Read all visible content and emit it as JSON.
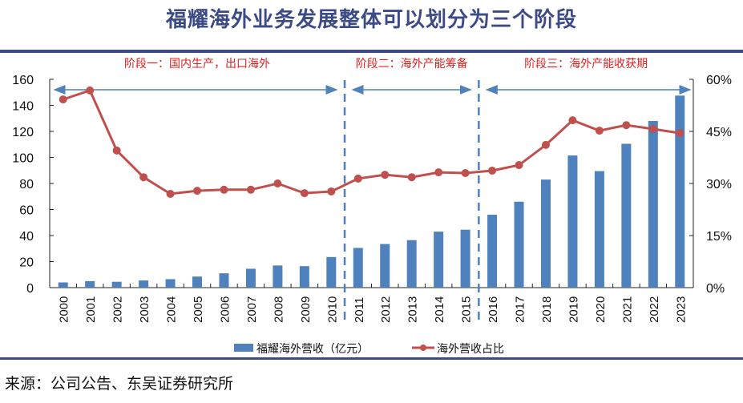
{
  "header": {
    "title": "福耀海外业务发展整体可以划分为三个阶段"
  },
  "footer": {
    "source": "来源：公司公告、东吴证券研究所"
  },
  "chart_data": {
    "type": "bar+line",
    "title": "福耀海外业务发展整体可以划分为三个阶段",
    "categories": [
      "2000",
      "2001",
      "2002",
      "2003",
      "2004",
      "2005",
      "2006",
      "2007",
      "2008",
      "2009",
      "2010",
      "2011",
      "2012",
      "2013",
      "2014",
      "2015",
      "2016",
      "2017",
      "2018",
      "2019",
      "2020",
      "2021",
      "2022",
      "2023"
    ],
    "series": [
      {
        "name": "福耀海外营收（亿元）",
        "type": "bar",
        "axis": "left",
        "color": "#4f81bd",
        "values": [
          4,
          5,
          4.5,
          5.5,
          6.5,
          8.5,
          11,
          14.5,
          17,
          16.5,
          23.5,
          30.5,
          33.5,
          36.5,
          43,
          44.5,
          56,
          66,
          83,
          101.5,
          89.5,
          110.5,
          128,
          147.5
        ]
      },
      {
        "name": "海外营收占比",
        "type": "line",
        "axis": "right",
        "color": "#c0504d",
        "values": [
          54.2,
          56.8,
          39.5,
          31.8,
          27.0,
          27.9,
          28.2,
          28.2,
          30.0,
          27.2,
          27.7,
          31.4,
          32.5,
          31.8,
          33.2,
          33.0,
          33.7,
          35.3,
          41.1,
          48.2,
          45.2,
          46.8,
          45.7,
          44.5
        ]
      }
    ],
    "y_left": {
      "ylim": [
        0,
        160
      ],
      "ticks": [
        0,
        20,
        40,
        60,
        80,
        100,
        120,
        140,
        160
      ]
    },
    "y_right": {
      "ylim": [
        0,
        60
      ],
      "ticks": [
        "0%",
        "15%",
        "30%",
        "45%",
        "60%"
      ],
      "tick_values": [
        0,
        15,
        30,
        45,
        60
      ]
    },
    "stages": [
      {
        "label": "阶段一：国内生产，出口海外",
        "from": "2000",
        "to": "2010"
      },
      {
        "label": "阶段二：海外产能筹备",
        "from": "2011",
        "to": "2015"
      },
      {
        "label": "阶段三：海外产能收获期",
        "from": "2016",
        "to": "2023"
      }
    ],
    "stage_divider_color": "#4f81bd",
    "legend": {
      "position": "bottom",
      "items": [
        "福耀海外营收（亿元）",
        "海外营收占比"
      ]
    },
    "grid": false,
    "xlabel": "",
    "ylabel": ""
  }
}
